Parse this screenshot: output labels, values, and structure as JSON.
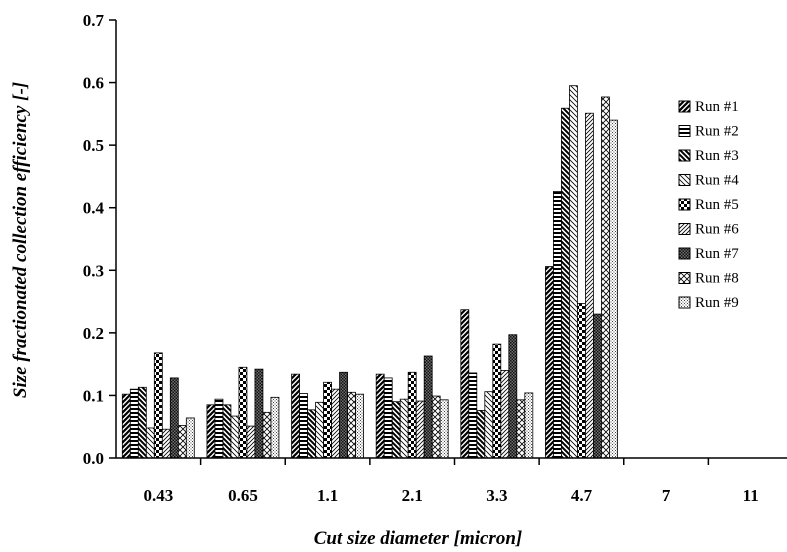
{
  "chart_data": {
    "type": "bar",
    "xlabel": "Cut size diameter [micron]",
    "ylabel": "Size fractionated collection efficiency [-]",
    "ylim": [
      0,
      0.7
    ],
    "yticks": [
      "0.0",
      "0.1",
      "0.2",
      "0.3",
      "0.4",
      "0.5",
      "0.6",
      "0.7"
    ],
    "categories": [
      "0.43",
      "0.65",
      "1.1",
      "2.1",
      "3.3",
      "4.7",
      "7",
      "11"
    ],
    "grid": false,
    "legend_position": "right",
    "series": [
      {
        "name": "Run #1",
        "pattern": "diag-thick-right",
        "values": [
          0.102,
          0.085,
          0.134,
          0.134,
          0.237,
          0.306,
          0,
          0
        ]
      },
      {
        "name": "Run #2",
        "pattern": "horizontal",
        "values": [
          0.11,
          0.094,
          0.103,
          0.128,
          0.136,
          0.426,
          0,
          0
        ]
      },
      {
        "name": "Run #3",
        "pattern": "diag-thick-left",
        "values": [
          0.113,
          0.085,
          0.077,
          0.09,
          0.076,
          0.559,
          0,
          0
        ]
      },
      {
        "name": "Run #4",
        "pattern": "diag-thin-left",
        "values": [
          0.048,
          0.067,
          0.089,
          0.094,
          0.106,
          0.595,
          0,
          0
        ]
      },
      {
        "name": "Run #5",
        "pattern": "checker",
        "values": [
          0.168,
          0.145,
          0.121,
          0.137,
          0.182,
          0.247,
          0,
          0
        ]
      },
      {
        "name": "Run #6",
        "pattern": "diag-thin-right",
        "values": [
          0.046,
          0.051,
          0.11,
          0.091,
          0.14,
          0.551,
          0,
          0
        ]
      },
      {
        "name": "Run #7",
        "pattern": "dense-dots",
        "values": [
          0.128,
          0.142,
          0.137,
          0.163,
          0.197,
          0.23,
          0,
          0
        ]
      },
      {
        "name": "Run #8",
        "pattern": "cross-hatch",
        "values": [
          0.052,
          0.073,
          0.105,
          0.099,
          0.093,
          0.577,
          0,
          0
        ]
      },
      {
        "name": "Run #9",
        "pattern": "light-dots",
        "values": [
          0.064,
          0.097,
          0.102,
          0.093,
          0.104,
          0.54,
          0,
          0
        ]
      }
    ]
  }
}
